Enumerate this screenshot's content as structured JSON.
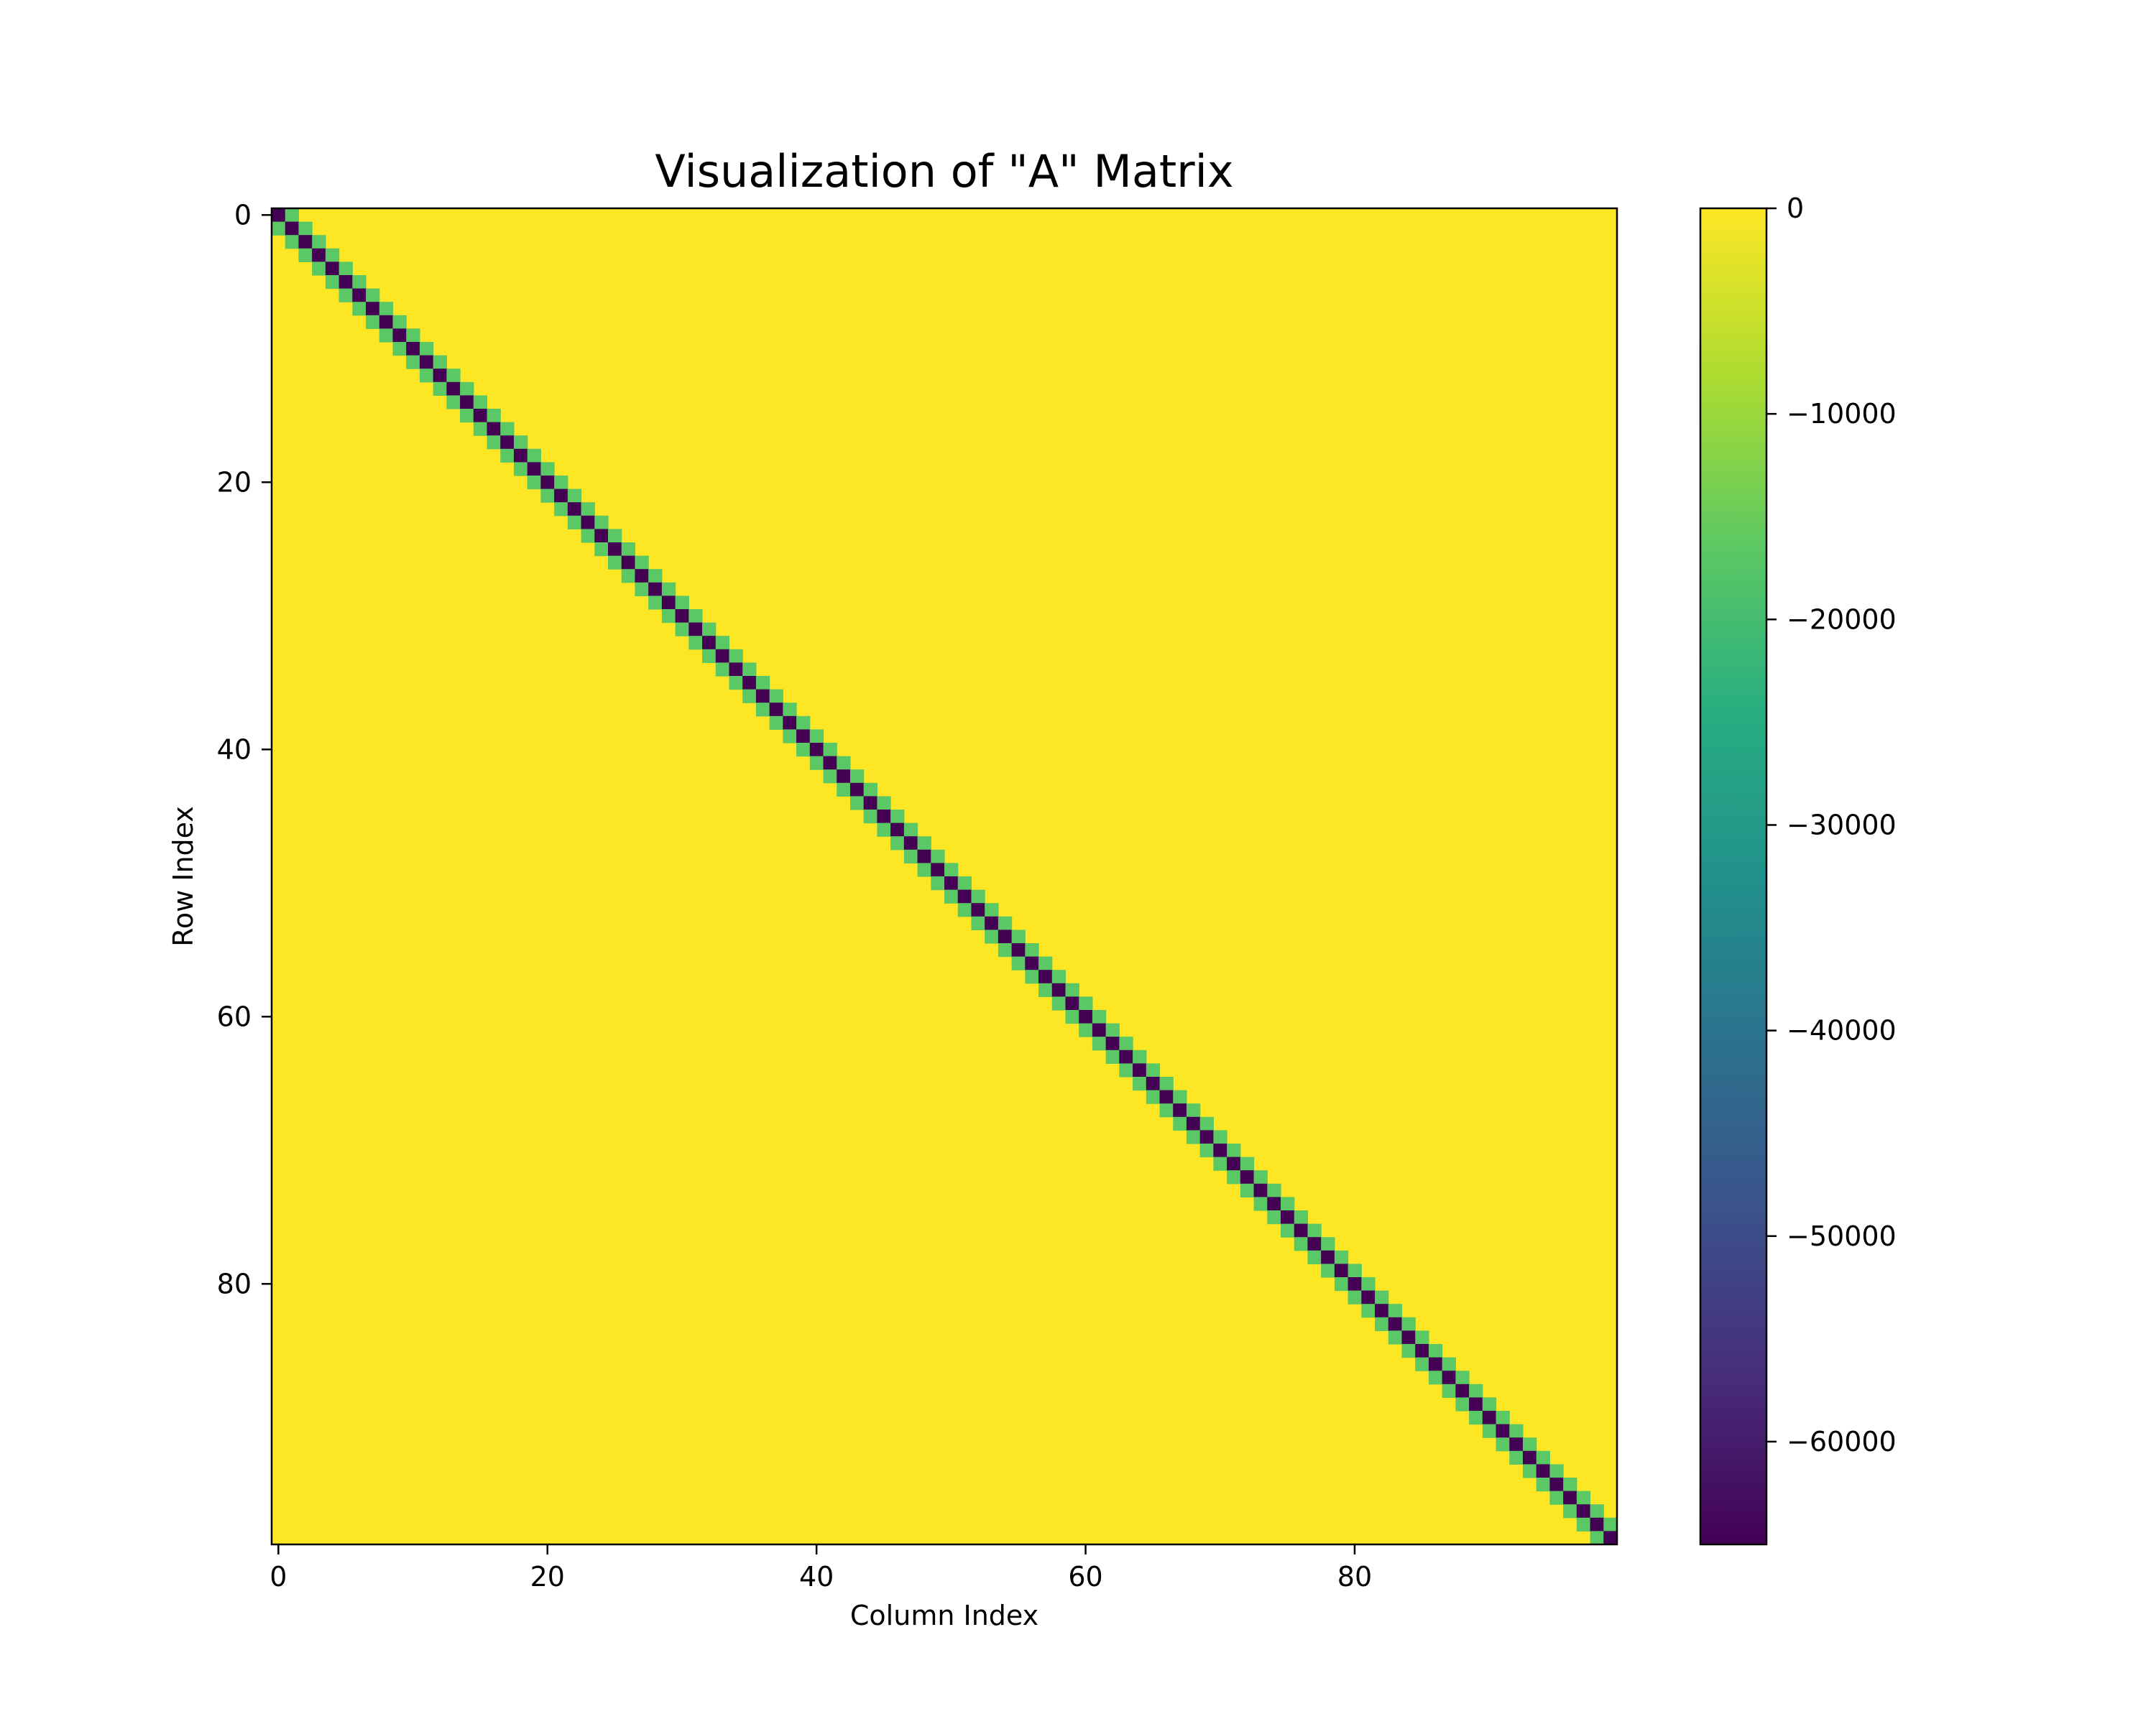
{
  "chart_data": {
    "type": "heatmap",
    "title": "Visualization of \"A\" Matrix",
    "xlabel": "Column Index",
    "ylabel": "Row Index",
    "shape": [
      100,
      100
    ],
    "structure": "tridiagonal",
    "diagonal_value": -65000,
    "off_diagonal_value": -16000,
    "background_value": 0,
    "xlim": [
      -0.5,
      99.5
    ],
    "ylim": [
      99.5,
      -0.5
    ],
    "x_ticks": [
      0,
      20,
      40,
      60,
      80
    ],
    "y_ticks": [
      0,
      20,
      40,
      60,
      80
    ],
    "x_tick_labels": [
      "0",
      "20",
      "40",
      "60",
      "80"
    ],
    "y_tick_labels": [
      "0",
      "20",
      "40",
      "60",
      "80"
    ],
    "colormap": "viridis",
    "colorbar": {
      "range": [
        -65000,
        0
      ],
      "ticks": [
        0,
        -10000,
        -20000,
        -30000,
        -40000,
        -50000,
        -60000
      ],
      "tick_labels": [
        "0",
        "−10000",
        "−20000",
        "−30000",
        "−40000",
        "−50000",
        "−60000"
      ]
    },
    "colors": {
      "background": "#fde725",
      "off_diagonal": "#5ac864",
      "diagonal": "#440154"
    }
  }
}
